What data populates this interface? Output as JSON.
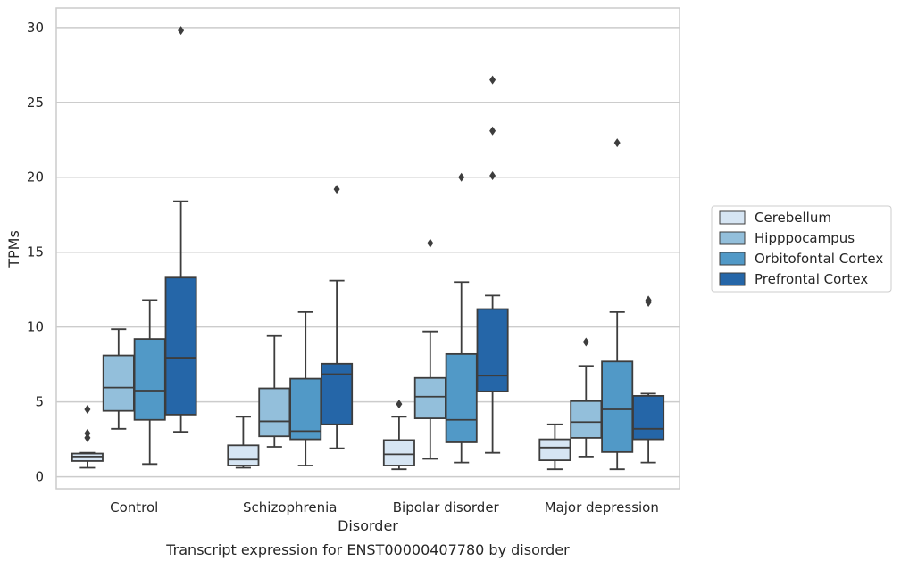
{
  "chart_data": {
    "type": "box",
    "xlabel": "Disorder",
    "ylabel": "TPMs",
    "caption": "Transcript expression for ENST00000407780 by disorder",
    "categories": [
      "Control",
      "Schizophrenia",
      "Bipolar disorder",
      "Major depression"
    ],
    "ylim": [
      -0.8,
      31.3
    ],
    "yticks": [
      0,
      5,
      10,
      15,
      20,
      25,
      30
    ],
    "grid": "horizontal",
    "legend_position": "right",
    "series": [
      {
        "name": "Cerebellum",
        "color": "#d6e5f3",
        "boxes": [
          {
            "whisker_low": 0.6,
            "q1": 1.05,
            "median": 1.35,
            "q3": 1.55,
            "whisker_high": 1.6,
            "outliers": [
              2.6,
              2.9,
              4.5
            ]
          },
          {
            "whisker_low": 0.6,
            "q1": 0.75,
            "median": 1.15,
            "q3": 2.1,
            "whisker_high": 4.0,
            "outliers": []
          },
          {
            "whisker_low": 0.5,
            "q1": 0.75,
            "median": 1.5,
            "q3": 2.45,
            "whisker_high": 4.0,
            "outliers": [
              4.85
            ]
          },
          {
            "whisker_low": 0.5,
            "q1": 1.1,
            "median": 1.95,
            "q3": 2.5,
            "whisker_high": 3.5,
            "outliers": []
          }
        ]
      },
      {
        "name": "Hipppocampus",
        "color": "#93bfdb",
        "boxes": [
          {
            "whisker_low": 3.2,
            "q1": 4.4,
            "median": 5.95,
            "q3": 8.1,
            "whisker_high": 9.85,
            "outliers": []
          },
          {
            "whisker_low": 2.0,
            "q1": 2.7,
            "median": 3.7,
            "q3": 5.9,
            "whisker_high": 9.4,
            "outliers": []
          },
          {
            "whisker_low": 1.2,
            "q1": 3.9,
            "median": 5.35,
            "q3": 6.6,
            "whisker_high": 9.7,
            "outliers": [
              15.6
            ]
          },
          {
            "whisker_low": 1.35,
            "q1": 2.6,
            "median": 3.65,
            "q3": 5.05,
            "whisker_high": 7.4,
            "outliers": [
              9.0
            ]
          }
        ]
      },
      {
        "name": "Orbitofontal Cortex",
        "color": "#5199c7",
        "boxes": [
          {
            "whisker_low": 0.85,
            "q1": 3.8,
            "median": 5.75,
            "q3": 9.2,
            "whisker_high": 11.8,
            "outliers": []
          },
          {
            "whisker_low": 0.75,
            "q1": 2.5,
            "median": 3.05,
            "q3": 6.55,
            "whisker_high": 11.0,
            "outliers": []
          },
          {
            "whisker_low": 0.95,
            "q1": 2.3,
            "median": 3.8,
            "q3": 8.2,
            "whisker_high": 13.0,
            "outliers": [
              20.0
            ]
          },
          {
            "whisker_low": 0.5,
            "q1": 1.65,
            "median": 4.5,
            "q3": 7.7,
            "whisker_high": 11.0,
            "outliers": [
              22.3
            ]
          }
        ]
      },
      {
        "name": "Prefrontal Cortex",
        "color": "#2566a8",
        "boxes": [
          {
            "whisker_low": 3.0,
            "q1": 4.15,
            "median": 7.95,
            "q3": 13.3,
            "whisker_high": 18.4,
            "outliers": [
              29.8
            ]
          },
          {
            "whisker_low": 1.9,
            "q1": 3.5,
            "median": 6.85,
            "q3": 7.55,
            "whisker_high": 13.1,
            "outliers": [
              19.2
            ]
          },
          {
            "whisker_low": 1.6,
            "q1": 5.7,
            "median": 6.75,
            "q3": 11.2,
            "whisker_high": 12.1,
            "outliers": [
              20.1,
              23.1,
              26.5
            ]
          },
          {
            "whisker_low": 0.95,
            "q1": 2.5,
            "median": 3.2,
            "q3": 5.4,
            "whisker_high": 5.55,
            "outliers": [
              11.65,
              11.8
            ]
          }
        ]
      }
    ]
  }
}
